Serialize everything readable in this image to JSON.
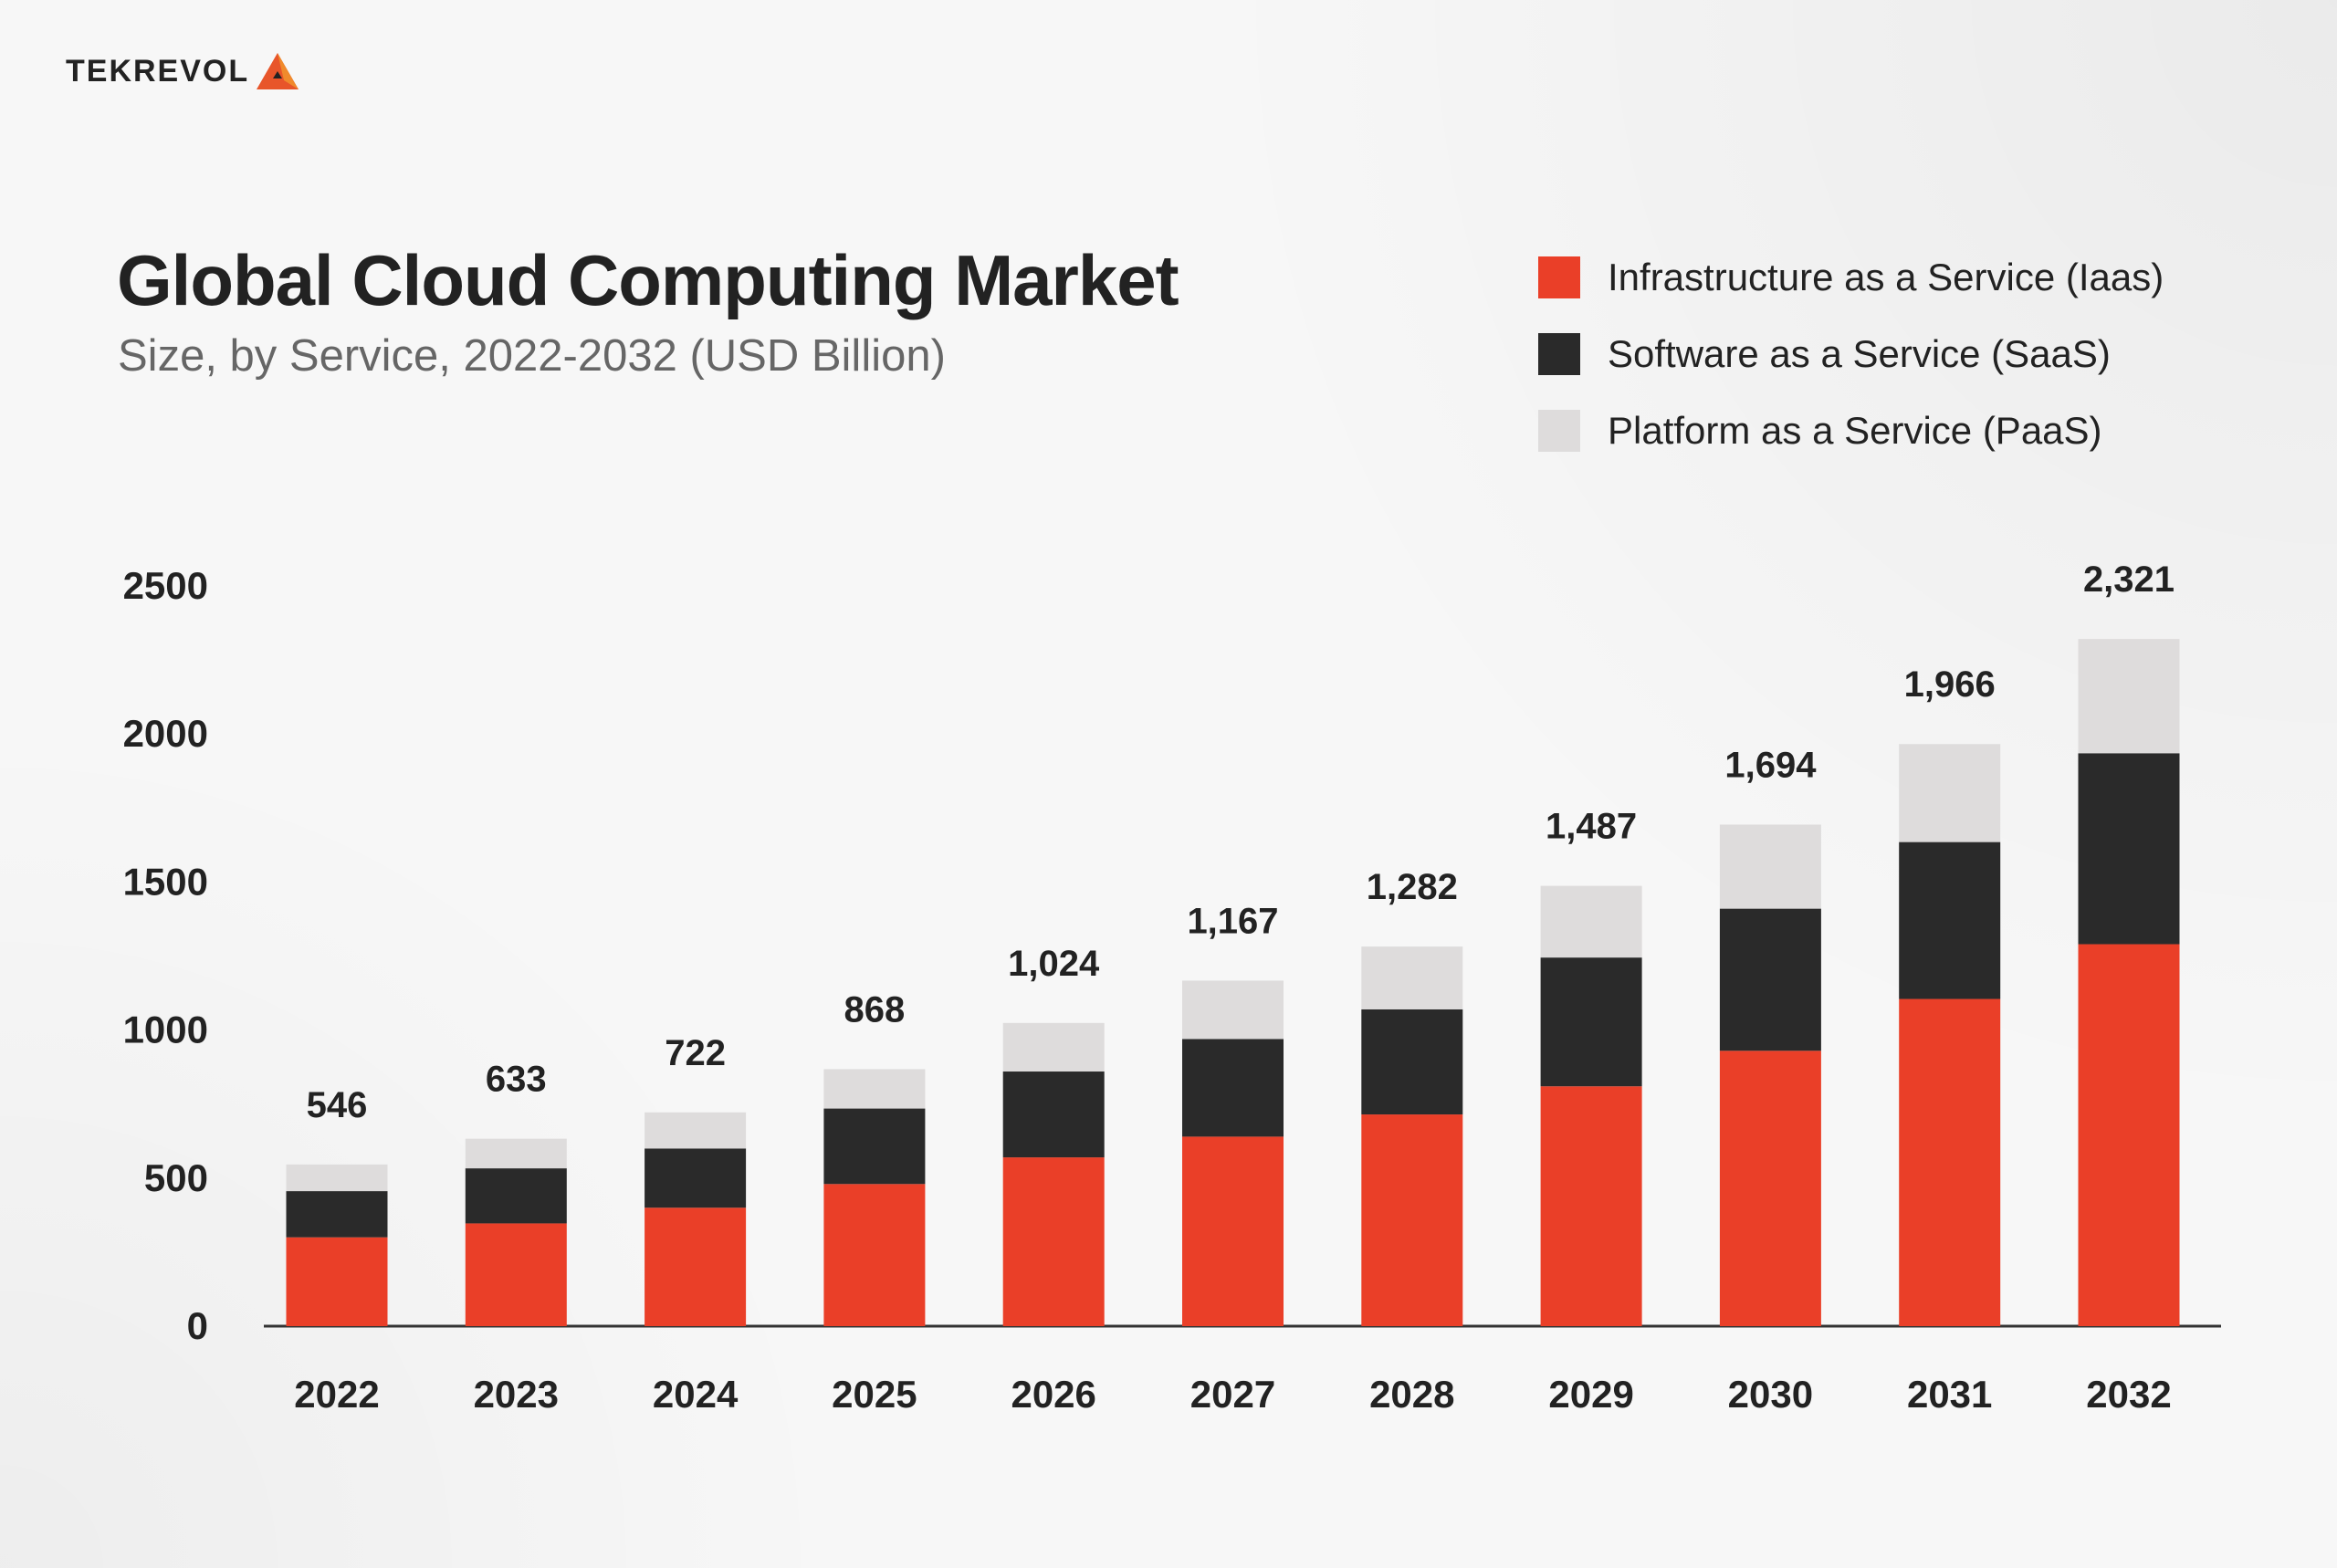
{
  "brand": {
    "logo_text": "TEKREVOL"
  },
  "chart_data": {
    "type": "bar",
    "stacked": true,
    "title": "Global Cloud Computing Market",
    "subtitle": "Size, by Service, 2022-2032 (USD Billion)",
    "xlabel": "",
    "ylabel": "",
    "categories": [
      "2022",
      "2023",
      "2024",
      "2025",
      "2026",
      "2027",
      "2028",
      "2029",
      "2030",
      "2031",
      "2032"
    ],
    "series": [
      {
        "name": "Infrastructure as a Service (Iaas)",
        "color": "#ea3f28",
        "values": [
          300,
          347,
          400,
          480,
          570,
          640,
          715,
          810,
          930,
          1105,
          1290
        ]
      },
      {
        "name": "Software as a Service (SaaS)",
        "color": "#2a2a2a",
        "values": [
          156,
          186,
          200,
          255,
          290,
          330,
          355,
          435,
          480,
          530,
          645
        ]
      },
      {
        "name": "Platform as a Service (PaaS)",
        "color": "#dedcdc",
        "values": [
          90,
          100,
          122,
          133,
          164,
          197,
          212,
          242,
          284,
          331,
          386
        ]
      }
    ],
    "totals_labels": [
      "546",
      "633",
      "722",
      "868",
      "1,024",
      "1,167",
      "1,282",
      "1,487",
      "1,694",
      "1,966",
      "2,321"
    ],
    "yticks": [
      "0",
      "500",
      "1000",
      "1500",
      "2000",
      "2500"
    ],
    "ylim": [
      0,
      2500
    ],
    "grid": false,
    "legend_position": "top-right"
  }
}
